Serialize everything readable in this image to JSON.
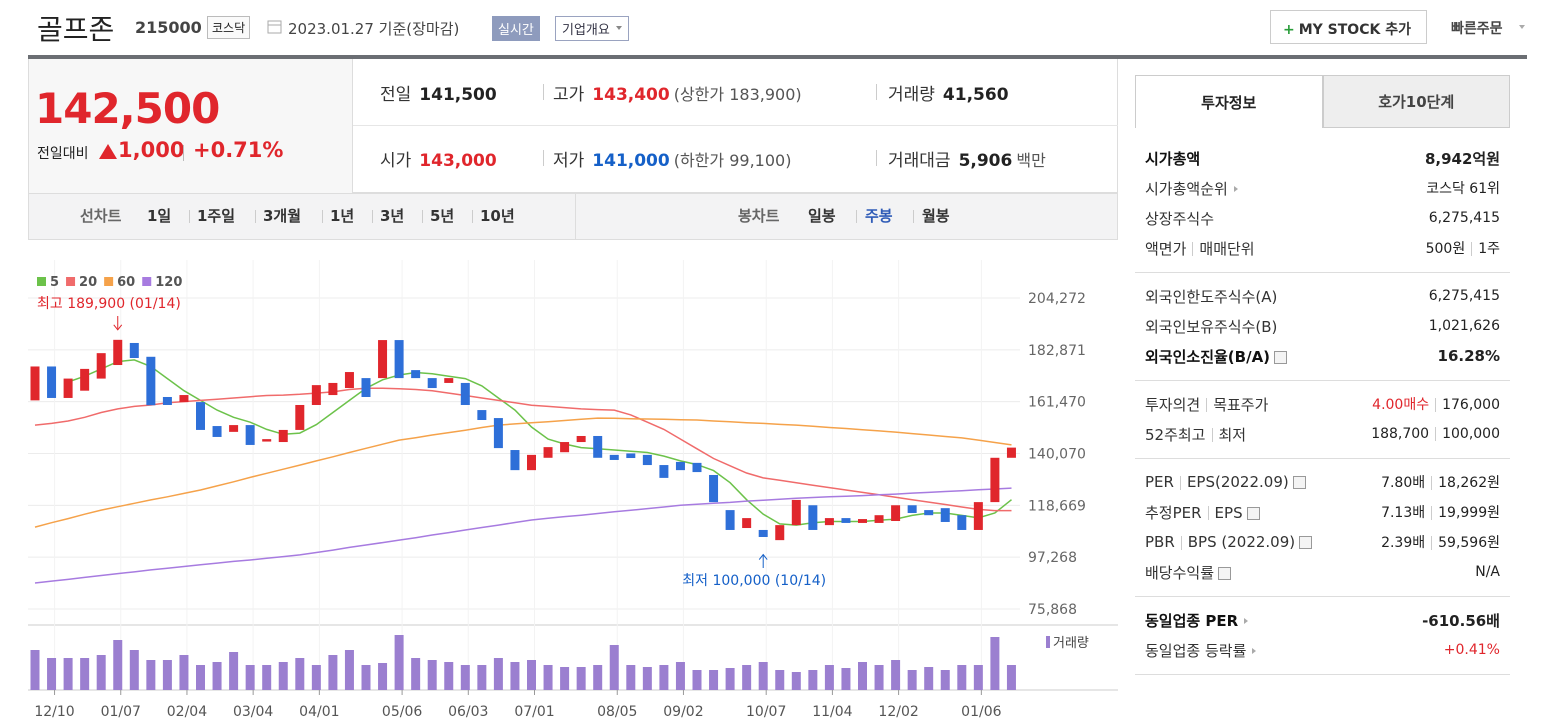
{
  "header": {
    "name": "골프존",
    "code": "215000",
    "market": "코스닥",
    "date": "2023.01.27 기준(장마감)",
    "realtime": "실시간",
    "overview": "기업개요",
    "mystock": "MY STOCK 추가",
    "quick_order": "빠른주문"
  },
  "price": {
    "current": "142,500",
    "change_label": "전일대비",
    "change": "1,000",
    "change_pct": "+0.71%"
  },
  "quotes": [
    {
      "label": "전일",
      "value": "141,500"
    },
    {
      "label": "고가",
      "value": "143,400",
      "note": "(상한가 183,900)",
      "color": "#e0262c"
    },
    {
      "label": "거래량",
      "value": "41,560"
    },
    {
      "label": "시가",
      "value": "143,000",
      "color": "#e0262c"
    },
    {
      "label": "저가",
      "value": "141,000",
      "note": "(하한가 99,100)",
      "color": "#1560c8"
    },
    {
      "label": "거래대금",
      "value": "5,906",
      "note": "백만"
    }
  ],
  "tabs": {
    "line_label": "선차트",
    "line_periods": [
      "1일",
      "1주일",
      "3개월",
      "1년",
      "3년",
      "5년",
      "10년"
    ],
    "candle_label": "봉차트",
    "candle_periods": [
      "일봉",
      "주봉",
      "월봉"
    ],
    "active_candle": 1
  },
  "chart_data": {
    "type": "candlestick",
    "categories": [
      null,
      "12/10",
      null,
      null,
      null,
      "01/07",
      null,
      null,
      null,
      "02/04",
      null,
      null,
      null,
      "03/04",
      null,
      null,
      null,
      "04/01",
      null,
      null,
      null,
      null,
      "05/06",
      null,
      null,
      null,
      "06/03",
      null,
      null,
      null,
      "07/01",
      null,
      null,
      null,
      null,
      "08/05",
      null,
      null,
      null,
      "09/02",
      null,
      null,
      null,
      null,
      "10/07",
      null,
      null,
      null,
      "11/04",
      null,
      null,
      null,
      "12/02",
      null,
      null,
      null,
      null,
      "01/06",
      null,
      null
    ],
    "open": [
      162000,
      176000,
      163000,
      166000,
      171000,
      176600,
      185700,
      180000,
      163400,
      161300,
      161300,
      151400,
      149000,
      151800,
      145000,
      144800,
      149800,
      160100,
      164200,
      167100,
      171200,
      171200,
      186900,
      174500,
      171200,
      169200,
      169200,
      158000,
      154700,
      141500,
      133200,
      138300,
      140600,
      144800,
      147300,
      139500,
      140100,
      139500,
      135300,
      136600,
      136200,
      131200,
      116700,
      109300,
      108500,
      104300,
      110500,
      118700,
      110500,
      113400,
      111400,
      111400,
      112200,
      118700,
      116700,
      117500,
      114600,
      108500,
      120000,
      138300
    ],
    "close": [
      176000,
      163000,
      171000,
      175000,
      181500,
      187000,
      179500,
      160000,
      160100,
      164200,
      149800,
      146900,
      151800,
      143600,
      146000,
      149800,
      160100,
      168300,
      169200,
      173700,
      163400,
      186900,
      171200,
      171200,
      167100,
      171200,
      160100,
      153900,
      142300,
      133200,
      139500,
      142700,
      144800,
      147300,
      138300,
      137400,
      138200,
      135300,
      130000,
      133200,
      132400,
      120000,
      108500,
      113400,
      105600,
      110500,
      120900,
      108500,
      113400,
      111400,
      113000,
      114600,
      118700,
      115500,
      114600,
      111800,
      108500,
      120000,
      138300,
      142500
    ],
    "up_color": "#e0262c",
    "down_color": "#2e6fd8",
    "series": [
      {
        "name": "5",
        "color": "#6cc24a",
        "values": [
          null,
          null,
          169600,
          172000,
          175000,
          178000,
          178700,
          176000,
          171000,
          166000,
          162000,
          158000,
          155000,
          153000,
          150000,
          148000,
          148500,
          152000,
          157000,
          162000,
          167000,
          170500,
          172500,
          173500,
          173000,
          172000,
          171000,
          168000,
          163000,
          158000,
          151000,
          146000,
          144000,
          142500,
          142000,
          141500,
          141000,
          140500,
          139000,
          137000,
          135500,
          133000,
          128000,
          121000,
          115000,
          111000,
          110500,
          111500,
          112000,
          112000,
          112000,
          112500,
          113000,
          114500,
          115500,
          115500,
          114500,
          113500,
          115500,
          121000
        ]
      },
      {
        "name": "20",
        "color": "#f06b6b",
        "values": [
          151800,
          152500,
          153500,
          155000,
          157000,
          158500,
          159500,
          160100,
          161000,
          161500,
          162000,
          162500,
          163000,
          163500,
          164000,
          164200,
          164500,
          165000,
          165500,
          166500,
          167000,
          167000,
          166800,
          166500,
          166000,
          165000,
          164000,
          163000,
          162000,
          161000,
          160000,
          159500,
          159000,
          158500,
          158200,
          158000,
          156000,
          153000,
          150000,
          146000,
          142000,
          138000,
          135000,
          132000,
          130000,
          129000,
          128000,
          127000,
          126000,
          125000,
          124000,
          123000,
          122000,
          121000,
          120000,
          119000,
          118000,
          117000,
          116500,
          116500
        ]
      },
      {
        "name": "60",
        "color": "#f5a24a",
        "values": [
          109700,
          111500,
          113200,
          115000,
          116700,
          118100,
          119500,
          120900,
          122200,
          123600,
          125000,
          126700,
          128400,
          130200,
          131900,
          133600,
          135300,
          137000,
          138700,
          140500,
          142200,
          143900,
          145600,
          146600,
          147700,
          148700,
          149700,
          150800,
          151800,
          152300,
          152800,
          153200,
          153700,
          154200,
          154700,
          154600,
          154400,
          154300,
          154200,
          154000,
          153900,
          153500,
          153200,
          152800,
          152500,
          152100,
          151800,
          151300,
          150800,
          150400,
          149900,
          149400,
          148900,
          148300,
          147700,
          147100,
          146500,
          145600,
          144600,
          143600
        ]
      },
      {
        "name": "120",
        "color": "#a77be0",
        "values": [
          86600,
          87400,
          88100,
          88900,
          89700,
          90500,
          91200,
          92000,
          92700,
          93400,
          94100,
          94800,
          95500,
          96100,
          96800,
          97500,
          98200,
          99200,
          100200,
          101300,
          102300,
          103300,
          104300,
          105300,
          106400,
          107400,
          108500,
          109500,
          110500,
          111600,
          112600,
          113300,
          114000,
          114600,
          115300,
          116000,
          116600,
          117300,
          118000,
          118700,
          119100,
          119500,
          119900,
          120400,
          120800,
          121200,
          121600,
          121900,
          122200,
          122400,
          122700,
          123000,
          123300,
          123700,
          124000,
          124400,
          124700,
          125100,
          125400,
          125800
        ]
      }
    ],
    "ylim": [
      69262,
      219960
    ],
    "yticks": [
      {
        "value": 75868,
        "label": "75,868"
      },
      {
        "value": 97268,
        "label": "97,268"
      },
      {
        "value": 118669,
        "label": "118,669"
      },
      {
        "value": 140070,
        "label": "140,070"
      },
      {
        "value": 161470,
        "label": "161,470"
      },
      {
        "value": 182871,
        "label": "182,871"
      },
      {
        "value": 204272,
        "label": "204,272"
      }
    ],
    "grid": true,
    "annotations": [
      {
        "text": "최고 189,900 (01/14)",
        "index": 5,
        "value": 189900,
        "color": "#e0262c"
      },
      {
        "text": "최저 100,000 (10/14)",
        "index": 44,
        "value": 100000,
        "color": "#1560c8"
      }
    ],
    "volume": {
      "name": "거래량",
      "color": "#9b7fd0",
      "ylim": [
        0,
        65
      ],
      "values": [
        40,
        32,
        32,
        32,
        35,
        50,
        40,
        30,
        30,
        35,
        25,
        28,
        38,
        25,
        25,
        28,
        32,
        25,
        35,
        40,
        25,
        27,
        55,
        32,
        30,
        28,
        25,
        25,
        32,
        28,
        30,
        25,
        23,
        23,
        25,
        45,
        25,
        23,
        25,
        28,
        20,
        20,
        22,
        25,
        28,
        20,
        18,
        20,
        25,
        22,
        28,
        25,
        30,
        20,
        23,
        20,
        25,
        25,
        53,
        25
      ]
    }
  },
  "sidebar": {
    "tabs": [
      "투자정보",
      "호가10단계"
    ],
    "sections": [
      [
        {
          "labels": [
            "시가총액"
          ],
          "values": [
            "8,942억원"
          ],
          "bold": true
        },
        {
          "labels": [
            "시가총액순위"
          ],
          "values": [
            "코스닥 61위"
          ],
          "arrow": true
        },
        {
          "labels": [
            "상장주식수"
          ],
          "values": [
            "6,275,415"
          ]
        },
        {
          "labels": [
            "액면가",
            "매매단위"
          ],
          "values": [
            "500원",
            "1주"
          ]
        }
      ],
      [
        {
          "labels": [
            "외국인한도주식수(A)"
          ],
          "values": [
            "6,275,415"
          ]
        },
        {
          "labels": [
            "외국인보유주식수(B)"
          ],
          "values": [
            "1,021,626"
          ]
        },
        {
          "labels": [
            "외국인소진율(B/A)"
          ],
          "values": [
            "16.28%"
          ],
          "bold": true,
          "help": true
        }
      ],
      [
        {
          "labels": [
            "투자의견",
            "목표주가"
          ],
          "values": [
            "4.00매수",
            "176,000"
          ],
          "red_value": 0
        },
        {
          "labels": [
            "52주최고",
            "최저"
          ],
          "values": [
            "188,700",
            "100,000"
          ]
        }
      ],
      [
        {
          "labels": [
            "PER",
            "EPS(2022.09)"
          ],
          "values": [
            "7.80배",
            "18,262원"
          ],
          "help": true
        },
        {
          "labels": [
            "추정PER",
            "EPS"
          ],
          "values": [
            "7.13배",
            "19,999원"
          ],
          "help": true
        },
        {
          "labels": [
            "PBR",
            "BPS (2022.09)"
          ],
          "values": [
            "2.39배",
            "59,596원"
          ],
          "help": true
        },
        {
          "labels": [
            "배당수익률"
          ],
          "values": [
            "N/A"
          ],
          "help": true
        }
      ],
      [
        {
          "labels": [
            "동일업종 PER"
          ],
          "values": [
            "-610.56배"
          ],
          "bold": true,
          "arrow": true
        },
        {
          "labels": [
            "동일업종 등락률"
          ],
          "values": [
            "+0.41%"
          ],
          "arrow": true,
          "red_value": 0
        }
      ]
    ]
  }
}
